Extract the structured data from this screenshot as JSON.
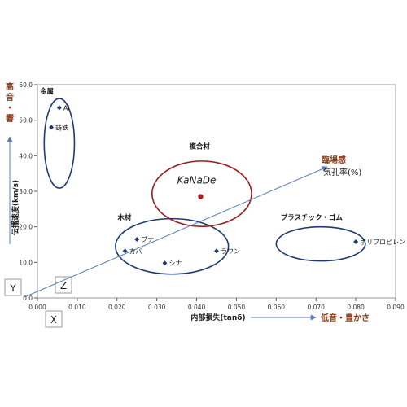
{
  "chart_data": {
    "type": "scatter",
    "xlabel": "内部損失(tanδ)",
    "ylabel": "伝播速度(km/s)",
    "xlim": [
      0,
      0.09
    ],
    "ylim": [
      0,
      60
    ],
    "x_ticks": [
      "0.000",
      "0.010",
      "0.020",
      "0.030",
      "0.040",
      "0.050",
      "0.060",
      "0.070",
      "0.080",
      "0.090"
    ],
    "y_ticks": [
      "0.0",
      "10.0",
      "20.0",
      "30.0",
      "40.0",
      "50.0",
      "60.0"
    ],
    "grid": false,
    "points": [
      {
        "x": 0.0055,
        "y": 53.5,
        "label": "Al",
        "color": "#1f3b73"
      },
      {
        "x": 0.0035,
        "y": 48,
        "label": "鋳鉄",
        "color": "#1f3b73"
      },
      {
        "x": 0.025,
        "y": 16.5,
        "label": "ブナ",
        "color": "#1f3b73"
      },
      {
        "x": 0.022,
        "y": 13.2,
        "label": "カバ",
        "color": "#1f3b73"
      },
      {
        "x": 0.045,
        "y": 13.2,
        "label": "ラワン",
        "color": "#1f3b73"
      },
      {
        "x": 0.032,
        "y": 9.8,
        "label": "シナ",
        "color": "#1f3b73"
      },
      {
        "x": 0.08,
        "y": 15.8,
        "label": "ポリプロピレン",
        "color": "#1f3b73"
      },
      {
        "x": 0.041,
        "y": 28.5,
        "label": "",
        "color": "#b11c1c"
      }
    ],
    "groups": [
      {
        "label": "金属",
        "cx": 0.0055,
        "cy": 43.5,
        "rx": 0.0038,
        "ry": 12.6,
        "color": "#1f3b73",
        "label_x": 0.0,
        "label_y": 57.5
      },
      {
        "label": "木材",
        "cx": 0.0338,
        "cy": 14.5,
        "rx": 0.0142,
        "ry": 7.8,
        "color": "#1f3b73",
        "label_x": 0.0195,
        "label_y": 22.0
      },
      {
        "label": "プラスチック・ゴム",
        "cx": 0.0712,
        "cy": 15.2,
        "rx": 0.0112,
        "ry": 4.8,
        "color": "#1f3b73",
        "label_x": 0.0605,
        "label_y": 22.0
      },
      {
        "label": "複合材",
        "cx": 0.0413,
        "cy": 29.3,
        "rx": 0.0125,
        "ry": 9.2,
        "color": "#9b1c1c",
        "label_x": 0.0375,
        "label_y": 42.0
      }
    ],
    "brand": "KaNaDe",
    "arrows": {
      "high_label": "高音・響",
      "low_label": "低音・豊かさ",
      "presence_label": "臨場感",
      "porosity_label": "気孔率(%)",
      "axis_x_label": "X",
      "axis_y_label": "Y",
      "axis_z_label": "Z"
    },
    "colors": {
      "axis": "#555555",
      "arrow": "#5a7fb8",
      "metal_text": "#8a3b1a",
      "brand": "#1a1a1a"
    }
  }
}
